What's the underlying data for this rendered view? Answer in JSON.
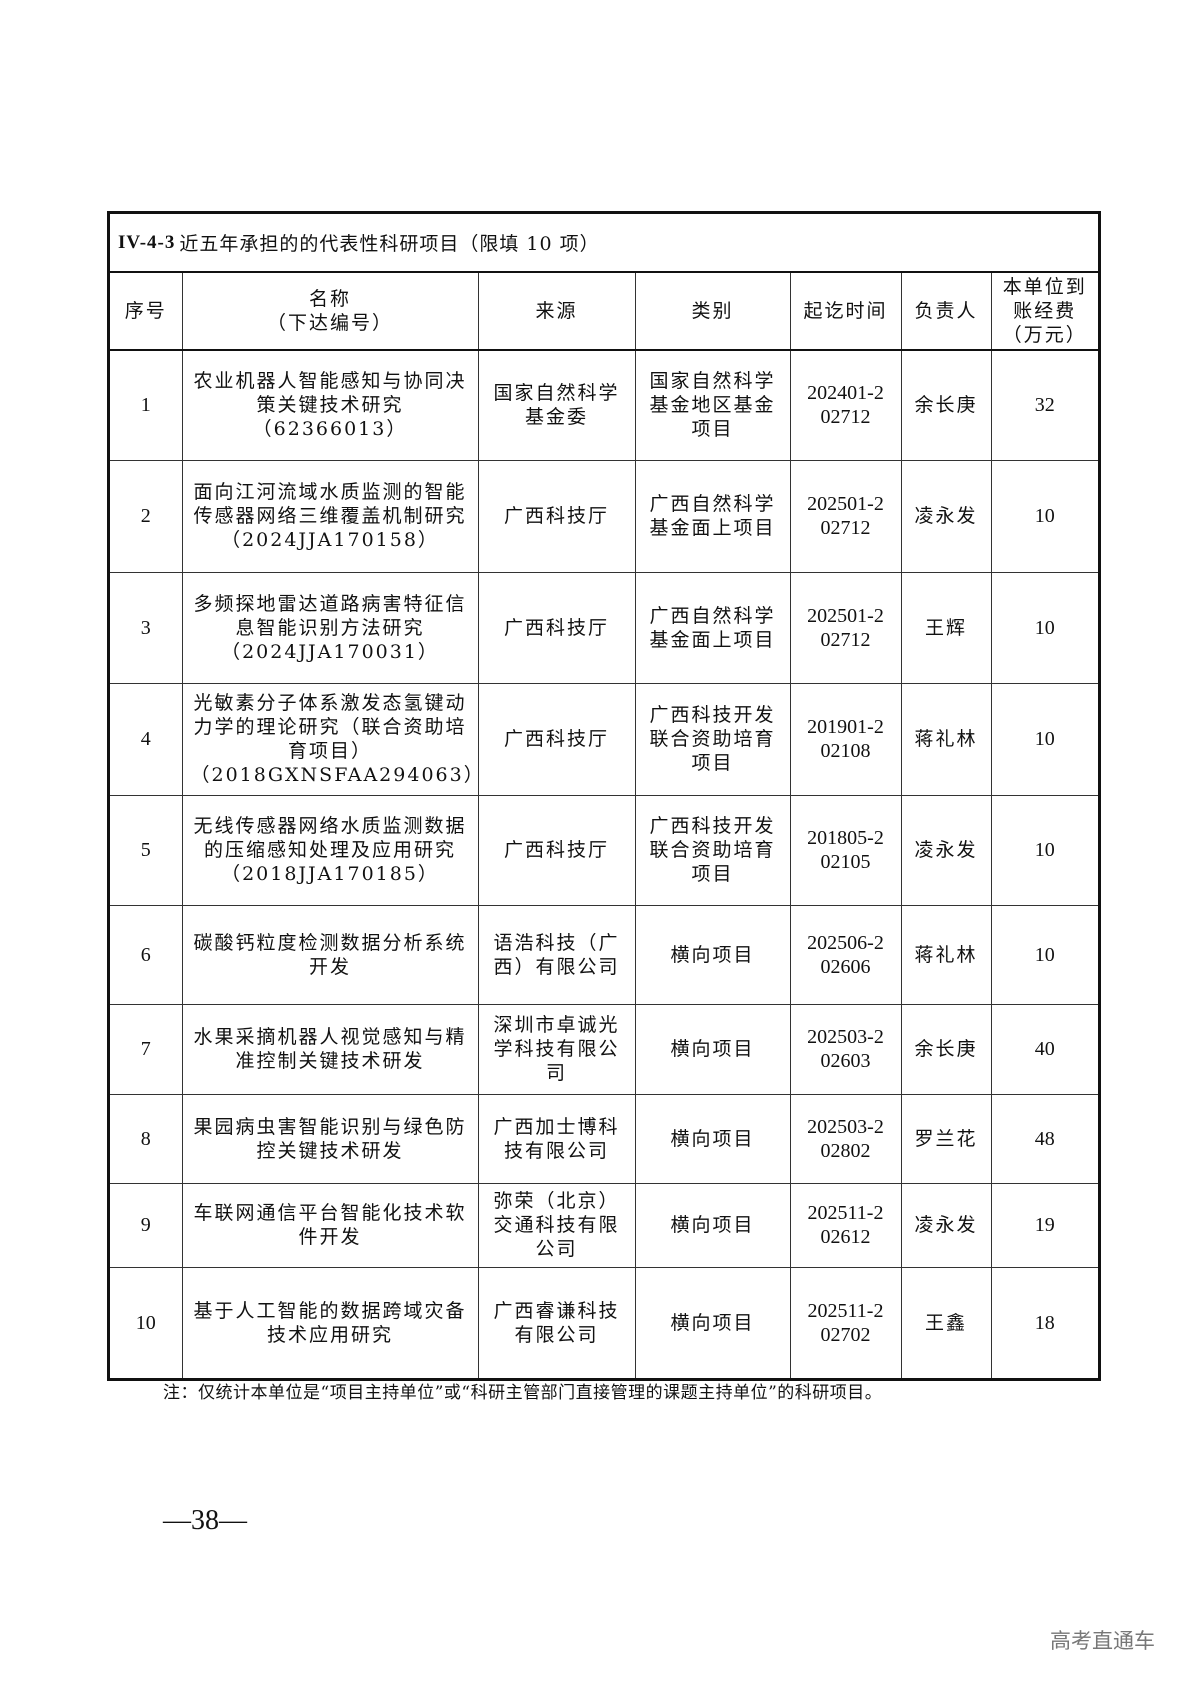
{
  "section": {
    "code": "IV-4-3",
    "title": "近五年承担的的代表性科研项目",
    "limit": "（限填 10 项）"
  },
  "headers": {
    "index": "序号",
    "name": "名称",
    "name_sub": "（下达编号）",
    "source": "来源",
    "category": "类别",
    "period": "起讫时间",
    "leader": "负责人",
    "funds": "本单位到账经费",
    "funds_unit": "（万元）"
  },
  "rows": [
    {
      "index": "1",
      "name": "农业机器人智能感知与协同决策关键技术研究（62366013）",
      "source": "国家自然科学基金委",
      "category": "国家自然科学基金地区基金项目",
      "period": "202401-202712",
      "leader": "余长庚",
      "funds": "32"
    },
    {
      "index": "2",
      "name": "面向江河流域水质监测的智能传感器网络三维覆盖机制研究（2024JJA170158）",
      "source": "广西科技厅",
      "category": "广西自然科学基金面上项目",
      "period": "202501-202712",
      "leader": "凌永发",
      "funds": "10"
    },
    {
      "index": "3",
      "name": "多频探地雷达道路病害特征信息智能识别方法研究（2024JJA170031）",
      "source": "广西科技厅",
      "category": "广西自然科学基金面上项目",
      "period": "202501-202712",
      "leader": "王辉",
      "funds": "10"
    },
    {
      "index": "4",
      "name": "光敏素分子体系激发态氢键动力学的理论研究（联合资助培育项目）（2018GXNSFAA294063）",
      "source": "广西科技厅",
      "category": "广西科技开发联合资助培育项目",
      "period": "201901-202108",
      "leader": "蒋礼林",
      "funds": "10"
    },
    {
      "index": "5",
      "name": "无线传感器网络水质监测数据的压缩感知处理及应用研究（2018JJA170185）",
      "source": "广西科技厅",
      "category": "广西科技开发联合资助培育项目",
      "period": "201805-202105",
      "leader": "凌永发",
      "funds": "10"
    },
    {
      "index": "6",
      "name": "碳酸钙粒度检测数据分析系统开发",
      "source": "语浩科技（广西）有限公司",
      "category": "横向项目",
      "period": "202506-202606",
      "leader": "蒋礼林",
      "funds": "10"
    },
    {
      "index": "7",
      "name": "水果采摘机器人视觉感知与精准控制关键技术研发",
      "source": "深圳市卓诚光学科技有限公司",
      "category": "横向项目",
      "period": "202503-202603",
      "leader": "余长庚",
      "funds": "40"
    },
    {
      "index": "8",
      "name": "果园病虫害智能识别与绿色防控关键技术研发",
      "source": "广西加士博科技有限公司",
      "category": "横向项目",
      "period": "202503-202802",
      "leader": "罗兰花",
      "funds": "48"
    },
    {
      "index": "9",
      "name": "车联网通信平台智能化技术软件开发",
      "source": "弥荣（北京）交通科技有限公司",
      "category": "横向项目",
      "period": "202511-202612",
      "leader": "凌永发",
      "funds": "19"
    },
    {
      "index": "10",
      "name": "基于人工智能的数据跨域灾备技术应用研究",
      "source": "广西睿谦科技有限公司",
      "category": "横向项目",
      "period": "202511-202702",
      "leader": "王鑫",
      "funds": "18"
    }
  ],
  "note": "注：仅统计本单位是“项目主持单位”或“科研主管部门直接管理的课题主持单位”的科研项目。",
  "page_number": "—38—",
  "watermark": "高考直通车"
}
